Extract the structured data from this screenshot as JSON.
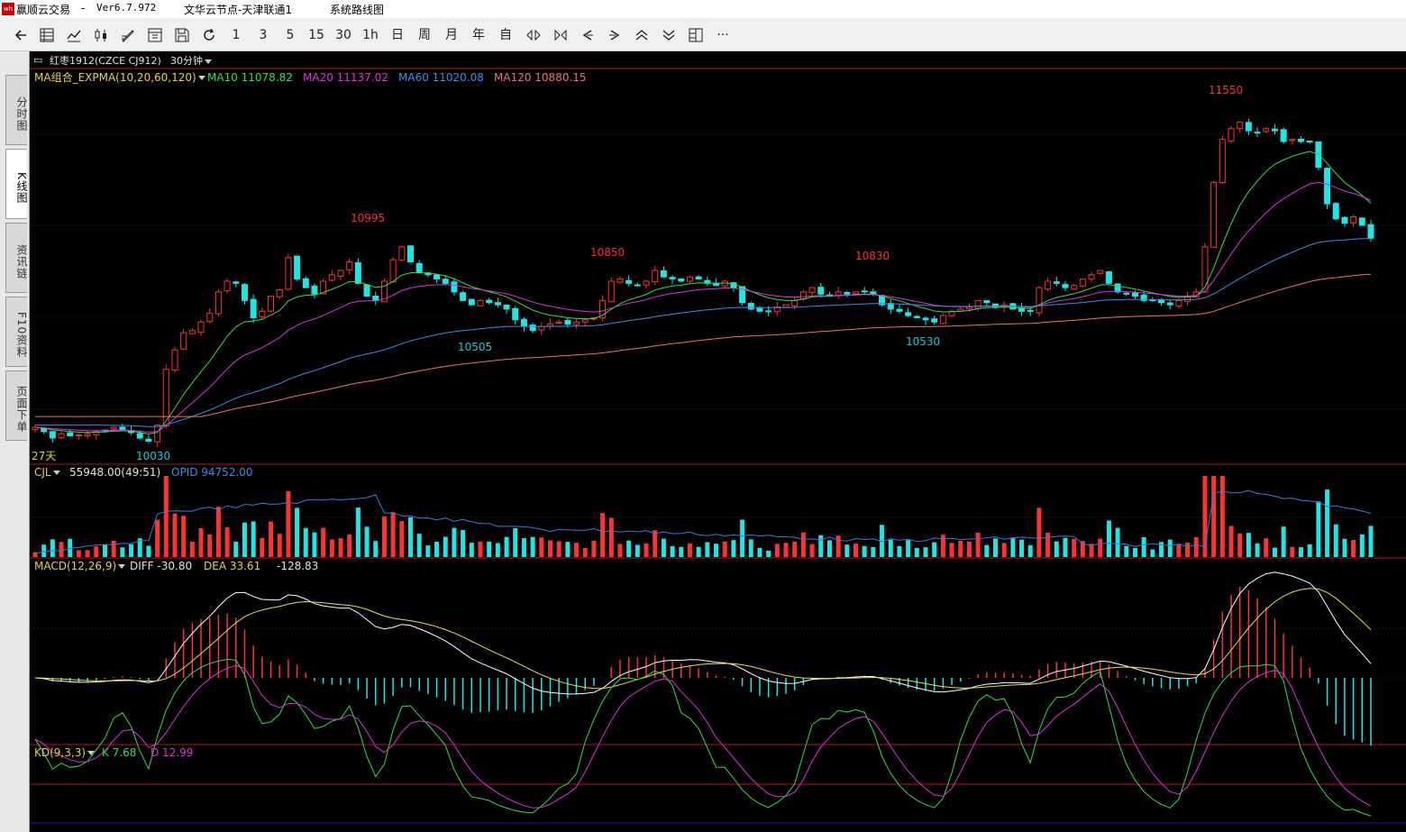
{
  "titlebar": {
    "app": "赢顺云交易",
    "sep": "-",
    "version": "Ver6.7.972",
    "node": "文华云节点-天津联通1",
    "menu": "系统路线图"
  },
  "toolbar": {
    "items": [
      {
        "name": "back-icon",
        "label": ""
      },
      {
        "name": "quote-list-icon",
        "label": ""
      },
      {
        "name": "line-chart-icon",
        "label": ""
      },
      {
        "name": "kline-icon",
        "label": ""
      },
      {
        "name": "draw-icon",
        "label": ""
      },
      {
        "name": "f10-icon",
        "label": ""
      },
      {
        "name": "save-icon",
        "label": ""
      },
      {
        "name": "refresh-icon",
        "label": ""
      },
      {
        "name": "period-1m",
        "label": "1"
      },
      {
        "name": "period-3m",
        "label": "3"
      },
      {
        "name": "period-5m",
        "label": "5"
      },
      {
        "name": "period-15m",
        "label": "15"
      },
      {
        "name": "period-30m",
        "label": "30"
      },
      {
        "name": "period-1h",
        "label": "1h"
      },
      {
        "name": "period-day",
        "label": "日"
      },
      {
        "name": "period-week",
        "label": "周"
      },
      {
        "name": "period-month",
        "label": "月"
      },
      {
        "name": "period-year",
        "label": "年"
      },
      {
        "name": "period-custom",
        "label": "自"
      },
      {
        "name": "zoom-in-icon",
        "label": ""
      },
      {
        "name": "zoom-out-icon",
        "label": ""
      },
      {
        "name": "left-icon",
        "label": ""
      },
      {
        "name": "right-icon",
        "label": ""
      },
      {
        "name": "up-icon",
        "label": ""
      },
      {
        "name": "down-icon",
        "label": ""
      },
      {
        "name": "layout-icon",
        "label": ""
      },
      {
        "name": "more-icon",
        "label": "···"
      }
    ]
  },
  "tabs": [
    {
      "label": "分时图",
      "active": false
    },
    {
      "label": "K线图",
      "active": true
    },
    {
      "label": "资讯链",
      "active": false
    },
    {
      "label": "F10资料",
      "active": false
    },
    {
      "label": "页面下单",
      "active": false
    }
  ],
  "contract": {
    "name": "红枣1912(CZCE CJ912)",
    "period": "30分钟"
  },
  "main_panel": {
    "indicator": "MA组合_EXPMA(10,20,60,120)",
    "ma10": "MA10 11078.82",
    "ma20": "MA20 11137.02",
    "ma60": "MA60 11020.08",
    "ma120": "MA120 10880.15",
    "days": "27天",
    "marks": {
      "low1": "10030",
      "high1": "10995",
      "high2": "10850",
      "low2": "10505",
      "high3": "10830",
      "low3": "10530",
      "high4": "11550"
    }
  },
  "vol_panel": {
    "indicator": "CJL",
    "volume": "55948.00(49:51)",
    "opid": "OPID 94752.00"
  },
  "macd_panel": {
    "indicator": "MACD(12,26,9)",
    "diff": "DIFF -30.80",
    "dea": "DEA 33.61",
    "macd": "-128.83"
  },
  "kd_panel": {
    "indicator": "KD(9,3,3)",
    "k": "K 7.68",
    "d": "D 12.99"
  },
  "colors": {
    "up": "#ff3232",
    "down": "#1ee6e6",
    "ma10": "#30e04a",
    "ma20": "#e030e0",
    "ma60": "#3a8ee8",
    "ma120": "#f07070",
    "grid": "#7a1010"
  },
  "chart_data": {
    "type": "candlestick",
    "period": "30分钟",
    "price_axis": {
      "min": 9980,
      "max": 11650
    },
    "closes": [
      10110,
      10090,
      10060,
      10080,
      10070,
      10075,
      10080,
      10090,
      10095,
      10110,
      10100,
      10085,
      10060,
      10045,
      10120,
      10380,
      10470,
      10550,
      10560,
      10600,
      10640,
      10740,
      10790,
      10780,
      10700,
      10620,
      10650,
      10720,
      10750,
      10900,
      10800,
      10760,
      10730,
      10790,
      10820,
      10840,
      10880,
      10780,
      10720,
      10700,
      10790,
      10890,
      10950,
      10880,
      10830,
      10820,
      10800,
      10780,
      10740,
      10700,
      10680,
      10700,
      10690,
      10680,
      10660,
      10610,
      10580,
      10560,
      10580,
      10590,
      10600,
      10590,
      10600,
      10610,
      10620,
      10700,
      10790,
      10800,
      10780,
      10770,
      10790,
      10840,
      10810,
      10800,
      10790,
      10810,
      10800,
      10780,
      10770,
      10790,
      10760,
      10690,
      10660,
      10650,
      10650,
      10670,
      10680,
      10700,
      10740,
      10760,
      10730,
      10720,
      10740,
      10730,
      10740,
      10740,
      10730,
      10680,
      10660,
      10650,
      10630,
      10620,
      10610,
      10600,
      10630,
      10650,
      10660,
      10670,
      10700,
      10690,
      10670,
      10680,
      10660,
      10650,
      10650,
      10760,
      10790,
      10780,
      10760,
      10770,
      10800,
      10820,
      10840,
      10780,
      10740,
      10730,
      10720,
      10700,
      10700,
      10690,
      10680,
      10700,
      10720,
      10740,
      10950,
      11250,
      11450,
      11500,
      11530,
      11490,
      11480,
      11500,
      11490,
      11440,
      11450,
      11440,
      11440,
      11320,
      11150,
      11080,
      11060,
      11090,
      11050,
      10990
    ]
  }
}
